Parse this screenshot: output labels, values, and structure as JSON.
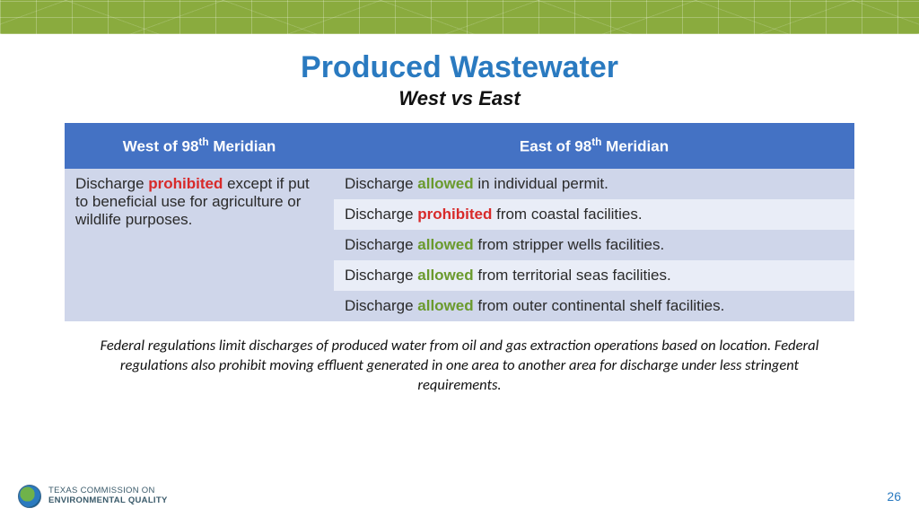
{
  "colors": {
    "title": "#2a7ac0",
    "subtitle": "#111111",
    "header_bg": "#4472c4",
    "row_light": "#e9edf7",
    "row_alt": "#cfd6ea",
    "prohibited": "#d82a2a",
    "allowed": "#6a9a2d",
    "page_num": "#2a7ac0"
  },
  "title": "Produced Wastewater",
  "subtitle": "West vs East",
  "table": {
    "headers": {
      "west_pre": "West of  98",
      "west_sup": "th",
      "west_post": " Meridian",
      "east_pre": "East of 98",
      "east_sup": "th",
      "east_post": " Meridian"
    },
    "west_cell": {
      "pre": "Discharge ",
      "key": "prohibited",
      "post": " except if put to beneficial use for agriculture or wildlife purposes."
    },
    "east_rows": [
      {
        "pre": "Discharge ",
        "key": "allowed",
        "style": "allowed",
        "post": " in individual permit."
      },
      {
        "pre": "Discharge ",
        "key": "prohibited",
        "style": "prohibited",
        "post": " from coastal facilities."
      },
      {
        "pre": "Discharge ",
        "key": "allowed",
        "style": "allowed",
        "post": " from stripper wells facilities."
      },
      {
        "pre": "Discharge ",
        "key": "allowed",
        "style": "allowed",
        "post": " from territorial seas facilities."
      },
      {
        "pre": "Discharge ",
        "key": "allowed",
        "style": "allowed",
        "post": " from outer continental shelf facilities."
      }
    ]
  },
  "footnote": "Federal regulations limit discharges of produced water from oil and gas extraction operations based on location. Federal regulations also prohibit moving effluent generated in one area to another area for discharge under less stringent requirements.",
  "footer": {
    "agency_line1": "TEXAS COMMISSION ON",
    "agency_line2": "ENVIRONMENTAL QUALITY",
    "page_number": "26"
  }
}
